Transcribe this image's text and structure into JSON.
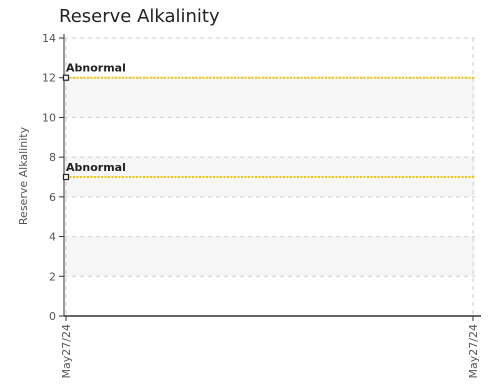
{
  "chart_data": {
    "type": "line",
    "title": "Reserve Alkalinity",
    "ylabel": "Reserve Alkalinity",
    "xlabel": "",
    "ylim": [
      0,
      14
    ],
    "yticks": [
      0,
      2,
      4,
      6,
      8,
      10,
      12,
      14
    ],
    "x_ticks": [
      "May27/24",
      "May27/24"
    ],
    "grid": true,
    "banded_background": true,
    "series": [
      {
        "values": [
          12,
          12
        ],
        "color": "#f5c400",
        "style": "dotted",
        "annotation": "Abnormal"
      },
      {
        "values": [
          7,
          7
        ],
        "color": "#f5c400",
        "style": "dotted",
        "annotation": "Abnormal"
      }
    ]
  }
}
